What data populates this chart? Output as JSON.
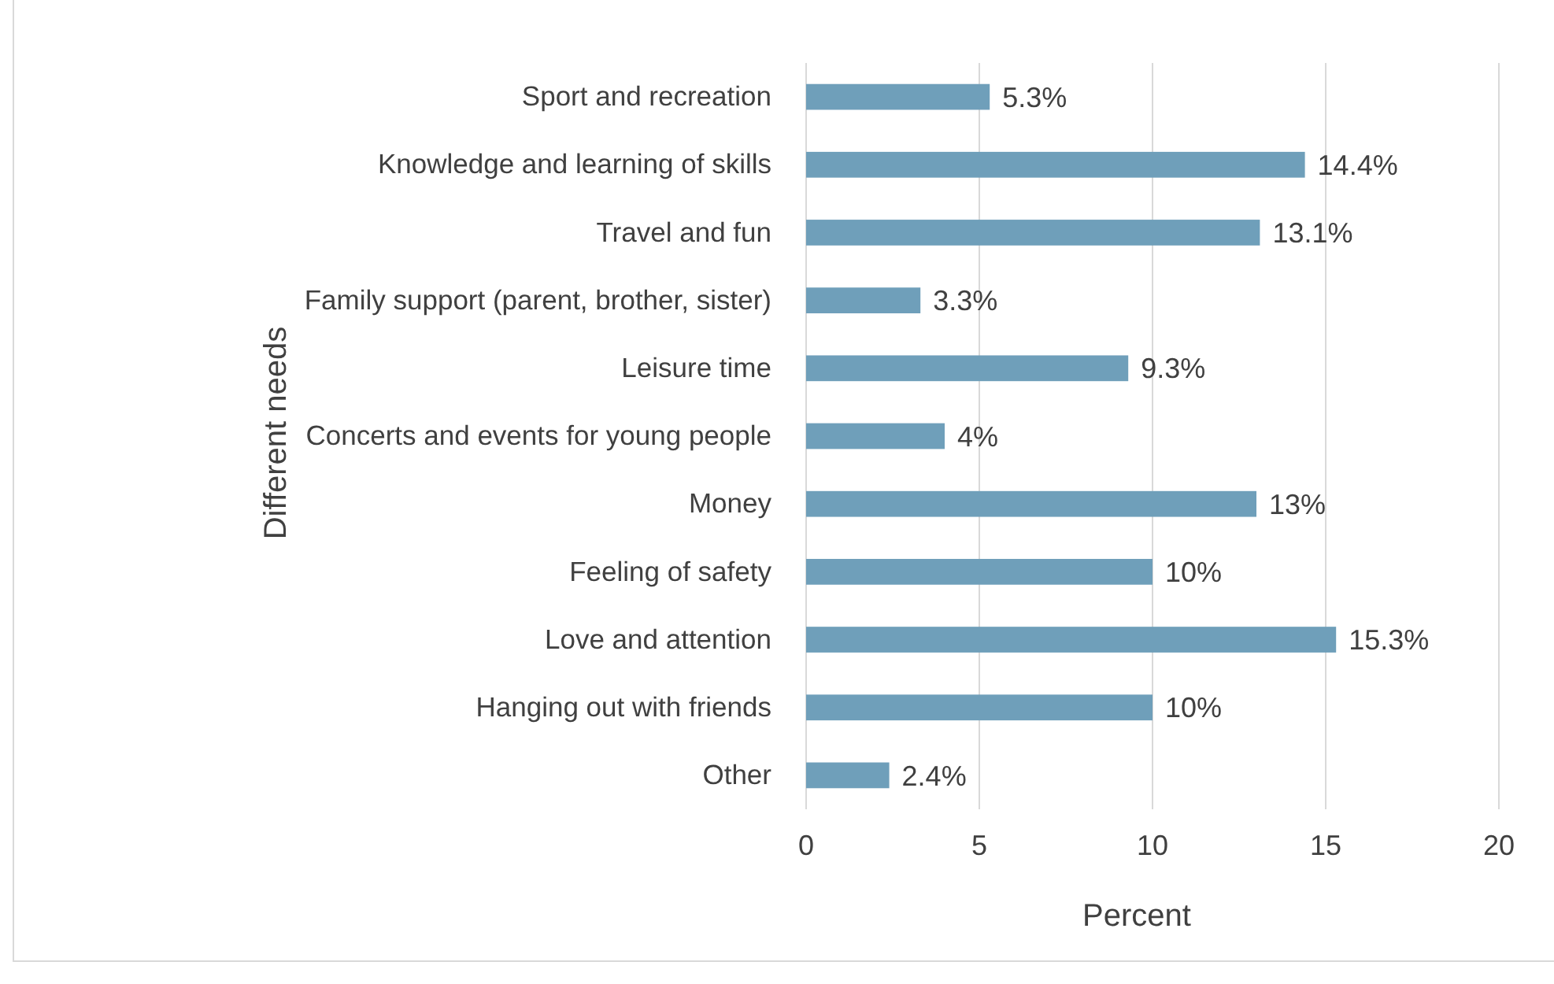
{
  "chart_data": {
    "type": "bar",
    "orientation": "horizontal",
    "xlabel": "Percent",
    "ylabel": "Different needs",
    "categories": [
      "Sport and recreation",
      "Knowledge and learning of skills",
      "Travel and fun",
      "Family support (parent, brother, sister)",
      "Leisure time",
      "Concerts and events for young people",
      "Money",
      "Feeling of safety",
      "Love and attention",
      "Hanging out with friends",
      "Other"
    ],
    "values": [
      5.3,
      14.4,
      13.1,
      3.3,
      9.3,
      4,
      13,
      10,
      15.3,
      10,
      2.4
    ],
    "value_labels": [
      "5.3%",
      "14.4%",
      "13.1%",
      "3.3%",
      "9.3%",
      "4%",
      "13%",
      "10%",
      "15.3%",
      "10%",
      "2.4%"
    ],
    "color": "#6f9fba",
    "xlim": [
      0,
      20
    ],
    "xticks": [
      0,
      5,
      10,
      15,
      20
    ],
    "grid": "x"
  }
}
